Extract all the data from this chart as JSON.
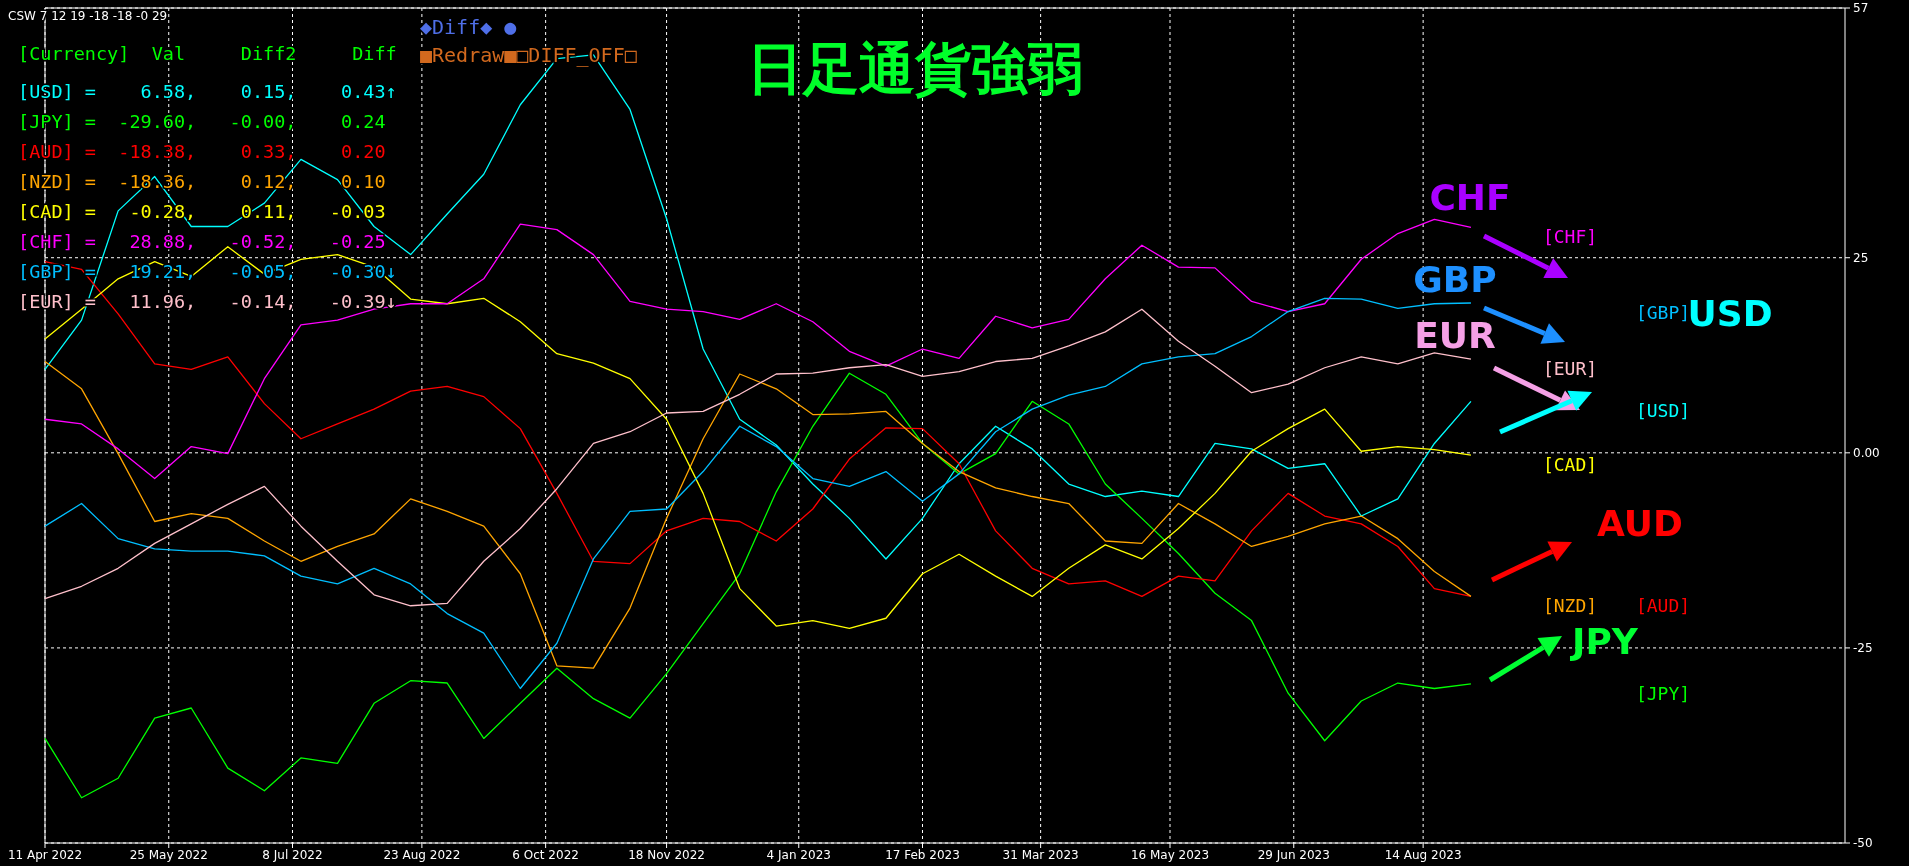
{
  "chart_data": {
    "type": "line",
    "title": "日足通貨強弱",
    "x": [
      "2022-04-11",
      "2022-04-24",
      "2022-05-07",
      "2022-05-20",
      "2022-06-02",
      "2022-06-15",
      "2022-06-28",
      "2022-07-11",
      "2022-07-24",
      "2022-08-06",
      "2022-08-19",
      "2022-09-01",
      "2022-09-14",
      "2022-09-27",
      "2022-10-10",
      "2022-10-23",
      "2022-11-05",
      "2022-11-18",
      "2022-12-01",
      "2022-12-14",
      "2022-12-27",
      "2023-01-09",
      "2023-01-22",
      "2023-02-04",
      "2023-02-17",
      "2023-03-02",
      "2023-03-15",
      "2023-03-28",
      "2023-04-10",
      "2023-04-23",
      "2023-05-06",
      "2023-05-19",
      "2023-06-01",
      "2023-06-14",
      "2023-06-27",
      "2023-07-10",
      "2023-07-23",
      "2023-08-05",
      "2023-08-18",
      "2023-08-31"
    ],
    "xlim": [
      "2022-04-11",
      "2024-01-11"
    ],
    "xticks": [
      {
        "value": "2022-04-11",
        "label": "11 Apr 2022"
      },
      {
        "value": "2022-05-25",
        "label": "25 May 2022"
      },
      {
        "value": "2022-07-08",
        "label": "8 Jul 2022"
      },
      {
        "value": "2022-08-23",
        "label": "23 Aug 2022"
      },
      {
        "value": "2022-10-06",
        "label": "6 Oct 2022"
      },
      {
        "value": "2022-11-18",
        "label": "18 Nov 2022"
      },
      {
        "value": "2023-01-04",
        "label": "4 Jan 2023"
      },
      {
        "value": "2023-02-17",
        "label": "17 Feb 2023"
      },
      {
        "value": "2023-03-31",
        "label": "31 Mar 2023"
      },
      {
        "value": "2023-05-16",
        "label": "16 May 2023"
      },
      {
        "value": "2023-06-29",
        "label": "29 Jun 2023"
      },
      {
        "value": "2023-08-14",
        "label": "14 Aug 2023"
      }
    ],
    "ylim": [
      -50,
      57
    ],
    "yticks": [
      57,
      25,
      {
        "value": 0,
        "label": "0.00"
      },
      -25,
      -50
    ],
    "grid": true,
    "series": [
      {
        "name": "[USD]",
        "color": "#00ffff",
        "values": [
          10.7,
          17,
          31,
          35.4,
          29,
          29,
          32,
          37.6,
          35,
          29,
          25.4,
          30.6,
          35.7,
          44.6,
          50.5,
          51,
          44,
          30,
          13.3,
          4.3,
          1,
          -4,
          -8.4,
          -13.6,
          -8.4,
          -1.4,
          3.4,
          0.5,
          -4,
          -5.6,
          -4.9,
          -5.6,
          1.2,
          0.5,
          -2,
          -1.4,
          -8.1,
          -5.9,
          1.2,
          6.6
        ]
      },
      {
        "name": "[JPY]",
        "color": "#00ff00",
        "values": [
          -36.6,
          -44.2,
          -41.7,
          -34,
          -32.7,
          -40.4,
          -43.3,
          -39.1,
          -39.8,
          -32.1,
          -29.2,
          -29.5,
          -36.6,
          -32.1,
          -27.6,
          -31.5,
          -34,
          -28.3,
          -21.9,
          -15.5,
          -5,
          3.4,
          10.2,
          7.5,
          1.2,
          -2.7,
          -0.1,
          6.6,
          3.7,
          -4,
          -8.4,
          -12.9,
          -18,
          -21.5,
          -30.8,
          -36.9,
          -31.8,
          -29.5,
          -30.2,
          -29.6
        ]
      },
      {
        "name": "[AUD]",
        "color": "#ff0000",
        "values": [
          24.5,
          23.5,
          17.8,
          11.4,
          10.7,
          12.3,
          6.3,
          1.8,
          3.7,
          5.6,
          7.9,
          8.5,
          7.2,
          3.1,
          -5.2,
          -13.9,
          -14.2,
          -10,
          -8.4,
          -8.8,
          -11.3,
          -7.2,
          -0.8,
          3.2,
          3.1,
          -1.4,
          -10,
          -14.8,
          -16.8,
          -16.4,
          -18.4,
          -15.8,
          -16.4,
          -10,
          -5.2,
          -8.1,
          -9.1,
          -12,
          -17.4,
          -18.4
        ]
      },
      {
        "name": "[NZD]",
        "color": "#ffa500",
        "values": [
          11.7,
          8.2,
          -0.1,
          -8.8,
          -7.8,
          -8.4,
          -11.3,
          -13.9,
          -12,
          -10.4,
          -5.9,
          -7.5,
          -9.4,
          -15.5,
          -27.3,
          -27.6,
          -19.9,
          -8.4,
          1.8,
          10.1,
          8.2,
          4.9,
          5,
          5.3,
          1.2,
          -2.4,
          -4.5,
          -5.6,
          -6.5,
          -11.3,
          -11.6,
          -6.5,
          -9.1,
          -12,
          -10.7,
          -9.1,
          -8.1,
          -11,
          -15.2,
          -18.4
        ]
      },
      {
        "name": "[CAD]",
        "color": "#ffff00",
        "values": [
          14.6,
          18.4,
          22.3,
          24.5,
          22.6,
          26.4,
          22.9,
          24.8,
          25.4,
          23.8,
          19.7,
          19.1,
          19.8,
          16.8,
          12.7,
          11.5,
          9.5,
          4.3,
          -5.2,
          -17.4,
          -22.2,
          -21.5,
          -22.5,
          -21.2,
          -15.5,
          -13,
          -15.8,
          -18.4,
          -14.8,
          -11.8,
          -13.6,
          -9.7,
          -5.2,
          0.2,
          3.1,
          5.6,
          0.2,
          0.8,
          0.4,
          -0.3
        ]
      },
      {
        "name": "[CHF]",
        "color": "#ff00ff",
        "values": [
          4.3,
          3.7,
          0.5,
          -3.3,
          0.8,
          -0.1,
          9.5,
          16.4,
          17,
          18.4,
          19.1,
          19.1,
          22.3,
          29.3,
          28.6,
          25.4,
          19.4,
          18.4,
          18.1,
          17.1,
          19.1,
          16.8,
          13,
          11.1,
          13.3,
          12.1,
          17.5,
          16,
          17.1,
          22.3,
          26.6,
          23.8,
          23.7,
          19.4,
          18.1,
          19.1,
          24.8,
          28.1,
          29.9,
          28.9
        ]
      },
      {
        "name": "[GBP]",
        "color": "#00bfff",
        "values": [
          -9.4,
          -6.5,
          -11,
          -12.3,
          -12.6,
          -12.6,
          -13.2,
          -15.8,
          -16.8,
          -14.8,
          -16.8,
          -20.6,
          -23.1,
          -30.2,
          -24.4,
          -13.6,
          -7.5,
          -7.2,
          -2.4,
          3.4,
          0.8,
          -3.3,
          -4.3,
          -2.4,
          -6.2,
          -2.7,
          2.7,
          5.6,
          7.4,
          8.5,
          11.4,
          12.3,
          12.7,
          14.9,
          18.1,
          19.8,
          19.7,
          18.5,
          19.1,
          19.2
        ]
      },
      {
        "name": "[EUR]",
        "color": "#ffc0cb",
        "values": [
          -18.7,
          -17.1,
          -14.8,
          -11.6,
          -9.1,
          -6.6,
          -4.3,
          -9.4,
          -13.9,
          -18.2,
          -19.6,
          -19.3,
          -13.9,
          -9.7,
          -4.6,
          1.2,
          2.7,
          5.1,
          5.3,
          7.5,
          10.1,
          10.2,
          10.9,
          11.3,
          9.8,
          10.4,
          11.7,
          12.1,
          13.7,
          15.5,
          18.4,
          14.3,
          11.1,
          7.7,
          8.8,
          10.9,
          12.3,
          11.4,
          12.8,
          12
        ]
      }
    ],
    "annotations": [
      "CSW 7 12 19 -18 -18 -0 29",
      "◆Diff◆ ●",
      "■Redraw■□DIFF_OFF□",
      "[Currency]  Val     Diff2     Diff",
      "[USD] =    6.58,    0.15,    0.43↑",
      "[JPY] =  -29.60,   -0.00,    0.24",
      "[AUD] =  -18.38,    0.33,    0.20",
      "[NZD] =  -18.36,    0.12,    0.10",
      "[CAD] =   -0.28,    0.11,   -0.03",
      "[CHF] =   28.88,   -0.52,   -0.25",
      "[GBP] =   19.21,   -0.05,   -0.30↓",
      "[EUR] =   11.96,   -0.14,   -0.39↓",
      "CHF",
      "GBP",
      "EUR",
      "USD",
      "AUD",
      "JPY"
    ]
  }
}
